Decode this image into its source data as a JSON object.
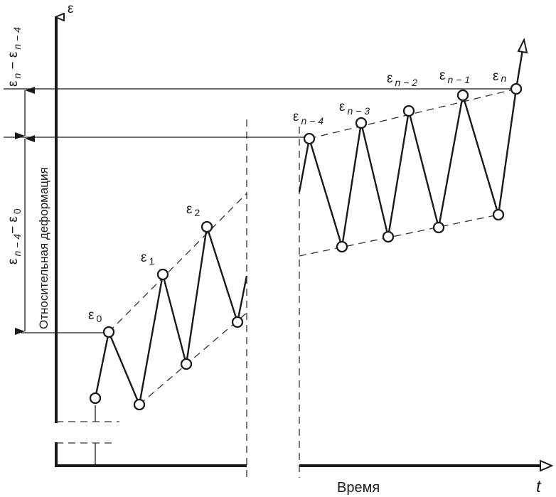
{
  "y_axis_label": "ε",
  "x_axis_label": "t",
  "time_label": "Время",
  "deformation_label": "Относительная деформация",
  "dim_upper": {
    "base": "ε",
    "sub1": "n",
    "sep": " − ε",
    "sub2": "n − 4"
  },
  "dim_lower": {
    "base": "ε",
    "sub1": "n − 4",
    "sep": "− ε",
    "sub2": "0"
  },
  "points_left": [
    {
      "base": "ε",
      "sub": "0"
    },
    {
      "base": "ε",
      "sub": "1"
    },
    {
      "base": "ε",
      "sub": "2"
    }
  ],
  "points_right": [
    {
      "base": "ε",
      "sub": "n − 4"
    },
    {
      "base": "ε",
      "sub": "n − 3"
    },
    {
      "base": "ε",
      "sub": "n − 2"
    },
    {
      "base": "ε",
      "sub": "n − 1"
    },
    {
      "base": "ε",
      "sub": "n"
    }
  ]
}
